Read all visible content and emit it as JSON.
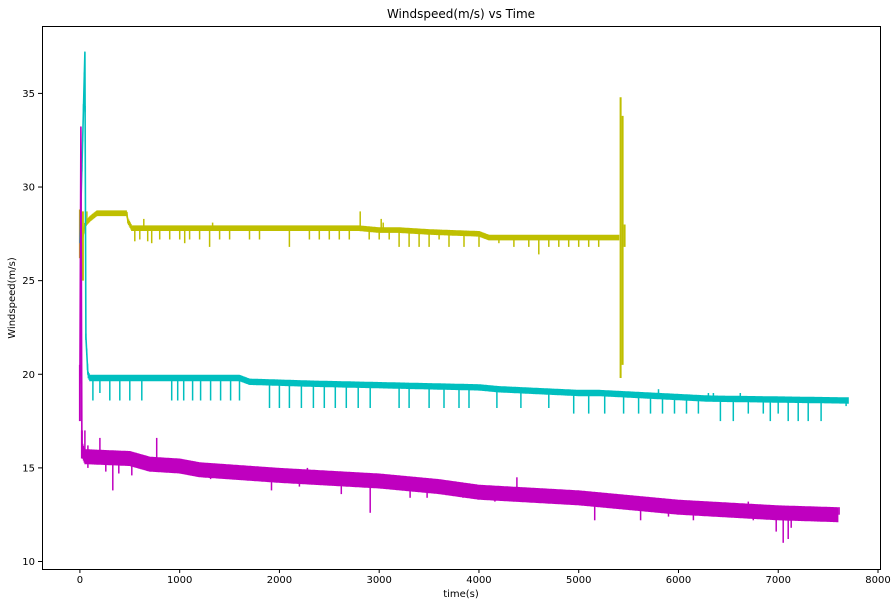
{
  "chart_data": {
    "type": "line",
    "title": "Windspeed(m/s) vs Time",
    "xlabel": "time(s)",
    "ylabel": "Windspeed(m/s)",
    "xlim": [
      -380,
      8020
    ],
    "ylim": [
      9.6,
      38.6
    ],
    "x_ticks": [
      0,
      1000,
      2000,
      3000,
      4000,
      5000,
      6000,
      7000,
      8000
    ],
    "y_ticks": [
      10,
      15,
      20,
      25,
      30,
      35
    ],
    "grid": false,
    "legend": "none",
    "series": [
      {
        "color": "#bfbf00",
        "base": [
          [
            20,
            27.0
          ],
          [
            50,
            28.0
          ],
          [
            100,
            28.3
          ],
          [
            170,
            28.6
          ],
          [
            470,
            28.6
          ],
          [
            480,
            28.2
          ],
          [
            520,
            27.8
          ],
          [
            1500,
            27.8
          ],
          [
            2800,
            27.8
          ],
          [
            3000,
            27.7
          ],
          [
            3200,
            27.7
          ],
          [
            3500,
            27.6
          ],
          [
            4000,
            27.5
          ],
          [
            4100,
            27.3
          ],
          [
            5000,
            27.3
          ],
          [
            5400,
            27.3
          ]
        ],
        "band": 0.15,
        "dips": [
          [
            550,
            27.1
          ],
          [
            600,
            27.2
          ],
          [
            680,
            27.1
          ],
          [
            720,
            27.0
          ],
          [
            800,
            27.2
          ],
          [
            900,
            27.2
          ],
          [
            1000,
            27.2
          ],
          [
            1050,
            27.0
          ],
          [
            1100,
            27.2
          ],
          [
            1200,
            27.2
          ],
          [
            1300,
            26.8
          ],
          [
            1400,
            27.2
          ],
          [
            1500,
            27.2
          ],
          [
            1700,
            27.2
          ],
          [
            1800,
            27.2
          ],
          [
            2100,
            26.8
          ],
          [
            2300,
            27.2
          ],
          [
            2400,
            27.2
          ],
          [
            2500,
            27.2
          ],
          [
            2600,
            27.2
          ],
          [
            2700,
            27.2
          ],
          [
            2900,
            27.2
          ],
          [
            3000,
            27.2
          ],
          [
            3100,
            27.2
          ],
          [
            3200,
            26.8
          ],
          [
            3300,
            26.8
          ],
          [
            3400,
            26.8
          ],
          [
            3500,
            26.8
          ],
          [
            3600,
            27.2
          ],
          [
            3700,
            26.8
          ],
          [
            3850,
            26.8
          ],
          [
            4000,
            26.8
          ],
          [
            4200,
            27.0
          ],
          [
            4350,
            26.8
          ],
          [
            4500,
            26.8
          ],
          [
            4600,
            26.4
          ],
          [
            4700,
            26.8
          ],
          [
            4800,
            26.8
          ],
          [
            4900,
            26.8
          ],
          [
            5000,
            26.8
          ],
          [
            5100,
            26.8
          ],
          [
            5200,
            26.8
          ]
        ],
        "spikes": [
          [
            70,
            28.7
          ],
          [
            640,
            28.3
          ],
          [
            2810,
            28.7
          ],
          [
            3020,
            28.3
          ],
          [
            3040,
            28.1
          ],
          [
            1330,
            28.1
          ]
        ],
        "segments": [
          [
            0,
            26.2,
            28.8
          ],
          [
            30,
            25.0,
            28.7
          ],
          [
            5420,
            19.8,
            34.8
          ],
          [
            5440,
            20.5,
            33.8
          ],
          [
            5460,
            26.8,
            28.0
          ]
        ]
      },
      {
        "color": "#00bfbf",
        "base": [
          [
            0,
            27.0
          ],
          [
            30,
            33.0
          ],
          [
            50,
            37.2
          ],
          [
            60,
            22.0
          ],
          [
            80,
            20.0
          ],
          [
            100,
            19.8
          ],
          [
            1600,
            19.8
          ],
          [
            1700,
            19.6
          ],
          [
            2300,
            19.5
          ],
          [
            4000,
            19.3
          ],
          [
            4200,
            19.2
          ],
          [
            5000,
            19.0
          ],
          [
            5200,
            19.0
          ],
          [
            6300,
            18.7
          ],
          [
            7700,
            18.6
          ]
        ],
        "band": 0.17,
        "dips": [
          [
            130,
            18.6
          ],
          [
            200,
            19.0
          ],
          [
            300,
            18.6
          ],
          [
            400,
            18.6
          ],
          [
            500,
            18.6
          ],
          [
            620,
            18.6
          ],
          [
            920,
            18.6
          ],
          [
            980,
            18.6
          ],
          [
            1040,
            18.6
          ],
          [
            1130,
            18.6
          ],
          [
            1210,
            18.6
          ],
          [
            1310,
            18.6
          ],
          [
            1410,
            18.6
          ],
          [
            1510,
            18.6
          ],
          [
            1600,
            18.6
          ],
          [
            1900,
            18.2
          ],
          [
            2000,
            18.2
          ],
          [
            2100,
            18.2
          ],
          [
            2220,
            18.2
          ],
          [
            2340,
            18.2
          ],
          [
            2450,
            18.2
          ],
          [
            2560,
            18.2
          ],
          [
            2670,
            18.2
          ],
          [
            2790,
            18.2
          ],
          [
            2910,
            18.2
          ],
          [
            3200,
            18.2
          ],
          [
            3300,
            18.2
          ],
          [
            3500,
            18.2
          ],
          [
            3650,
            18.2
          ],
          [
            3800,
            18.2
          ],
          [
            3900,
            18.2
          ],
          [
            4180,
            18.2
          ],
          [
            4420,
            18.2
          ],
          [
            4700,
            18.2
          ],
          [
            4950,
            17.9
          ],
          [
            5100,
            17.9
          ],
          [
            5260,
            17.9
          ],
          [
            5450,
            17.9
          ],
          [
            5600,
            17.9
          ],
          [
            5720,
            17.9
          ],
          [
            5840,
            17.9
          ],
          [
            5960,
            17.9
          ],
          [
            6080,
            17.9
          ],
          [
            6200,
            17.9
          ],
          [
            6420,
            17.5
          ],
          [
            6550,
            17.5
          ],
          [
            6700,
            17.9
          ],
          [
            6850,
            17.9
          ],
          [
            6920,
            17.5
          ],
          [
            7000,
            17.9
          ],
          [
            7100,
            17.5
          ],
          [
            7200,
            17.5
          ],
          [
            7300,
            17.5
          ],
          [
            7430,
            17.5
          ],
          [
            7680,
            18.3
          ]
        ],
        "spikes": [
          [
            5800,
            19.2
          ],
          [
            6300,
            19.0
          ],
          [
            6350,
            19.0
          ],
          [
            6620,
            19.0
          ]
        ],
        "segments": [
          [
            10,
            19.9,
            24.0
          ]
        ]
      },
      {
        "color": "#bf00bf",
        "base": [
          [
            0,
            19.5
          ],
          [
            10,
            33.2
          ],
          [
            20,
            16.0
          ],
          [
            50,
            15.6
          ],
          [
            500,
            15.5
          ],
          [
            700,
            15.2
          ],
          [
            1000,
            15.1
          ],
          [
            1200,
            14.9
          ],
          [
            2000,
            14.6
          ],
          [
            3000,
            14.3
          ],
          [
            3600,
            14.0
          ],
          [
            4000,
            13.7
          ],
          [
            5000,
            13.4
          ],
          [
            5400,
            13.2
          ],
          [
            6000,
            12.9
          ],
          [
            7000,
            12.6
          ],
          [
            7600,
            12.5
          ]
        ],
        "band": 0.4,
        "dips": [
          [
            80,
            15.0
          ],
          [
            260,
            14.8
          ],
          [
            330,
            13.8
          ],
          [
            390,
            14.7
          ],
          [
            520,
            14.6
          ],
          [
            630,
            15.0
          ],
          [
            1020,
            14.8
          ],
          [
            1310,
            14.4
          ],
          [
            1620,
            14.4
          ],
          [
            1920,
            13.8
          ],
          [
            2200,
            14.0
          ],
          [
            2620,
            13.6
          ],
          [
            2910,
            12.6
          ],
          [
            3310,
            13.4
          ],
          [
            3480,
            13.4
          ],
          [
            3840,
            13.4
          ],
          [
            4160,
            13.2
          ],
          [
            5160,
            12.2
          ],
          [
            5620,
            12.2
          ],
          [
            5900,
            12.4
          ],
          [
            6150,
            12.2
          ],
          [
            6750,
            12.2
          ],
          [
            6980,
            11.6
          ],
          [
            7050,
            11.0
          ],
          [
            7100,
            11.2
          ],
          [
            7130,
            11.8
          ]
        ],
        "spikes": [
          [
            50,
            17.0
          ],
          [
            80,
            16.2
          ],
          [
            200,
            16.6
          ],
          [
            770,
            16.6
          ],
          [
            1920,
            14.9
          ],
          [
            2280,
            15.0
          ],
          [
            2440,
            14.7
          ],
          [
            4380,
            14.5
          ],
          [
            6700,
            13.2
          ],
          [
            7610,
            12.9
          ]
        ],
        "segments": [
          [
            0,
            17.5,
            20.5
          ],
          [
            20,
            15.5,
            17.0
          ]
        ]
      }
    ]
  }
}
